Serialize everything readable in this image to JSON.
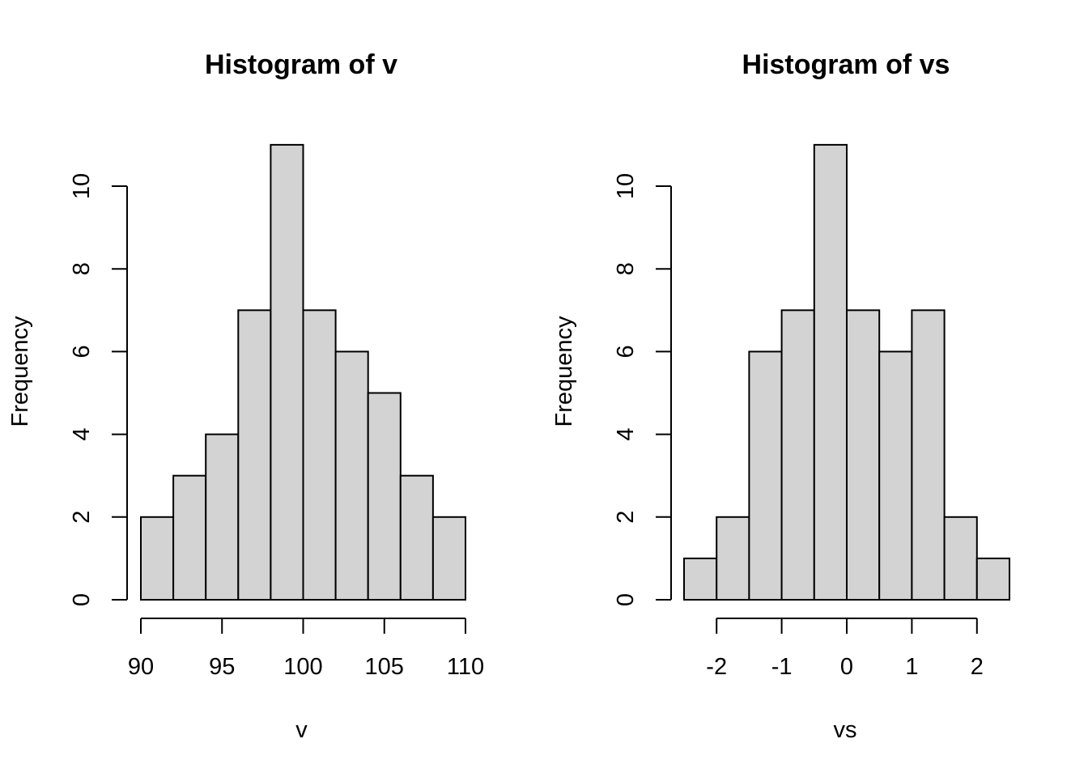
{
  "chart_data": [
    {
      "type": "bar",
      "title": "Histogram of v",
      "xlabel": "v",
      "ylabel": "Frequency",
      "bins": [
        {
          "x0": 90,
          "x1": 92,
          "count": 2
        },
        {
          "x0": 92,
          "x1": 94,
          "count": 3
        },
        {
          "x0": 94,
          "x1": 96,
          "count": 4
        },
        {
          "x0": 96,
          "x1": 98,
          "count": 7
        },
        {
          "x0": 98,
          "x1": 100,
          "count": 11
        },
        {
          "x0": 100,
          "x1": 102,
          "count": 7
        },
        {
          "x0": 102,
          "x1": 104,
          "count": 6
        },
        {
          "x0": 104,
          "x1": 106,
          "count": 5
        },
        {
          "x0": 106,
          "x1": 108,
          "count": 3
        },
        {
          "x0": 108,
          "x1": 110,
          "count": 2
        }
      ],
      "xticks": [
        90,
        95,
        100,
        105,
        110
      ],
      "xtick_labels": [
        "90",
        "95",
        "100",
        "105",
        "110"
      ],
      "yticks": [
        0,
        2,
        4,
        6,
        8,
        10
      ],
      "ytick_labels": [
        "0",
        "2",
        "4",
        "6",
        "8",
        "10"
      ],
      "xlim": [
        90,
        110
      ],
      "ylim": [
        0,
        11
      ],
      "bar_color": "#d3d3d3",
      "edge_color": "#000000",
      "grid": false
    },
    {
      "type": "bar",
      "title": "Histogram of vs",
      "xlabel": "vs",
      "ylabel": "Frequency",
      "bins": [
        {
          "x0": -2.5,
          "x1": -2.0,
          "count": 1
        },
        {
          "x0": -2.0,
          "x1": -1.5,
          "count": 2
        },
        {
          "x0": -1.5,
          "x1": -1.0,
          "count": 6
        },
        {
          "x0": -1.0,
          "x1": -0.5,
          "count": 7
        },
        {
          "x0": -0.5,
          "x1": 0.0,
          "count": 11
        },
        {
          "x0": 0.0,
          "x1": 0.5,
          "count": 7
        },
        {
          "x0": 0.5,
          "x1": 1.0,
          "count": 6
        },
        {
          "x0": 1.0,
          "x1": 1.5,
          "count": 7
        },
        {
          "x0": 1.5,
          "x1": 2.0,
          "count": 2
        },
        {
          "x0": 2.0,
          "x1": 2.5,
          "count": 1
        }
      ],
      "xticks": [
        -2,
        -1,
        0,
        1,
        2
      ],
      "xtick_labels": [
        "-2",
        "-1",
        "0",
        "1",
        "2"
      ],
      "yticks": [
        0,
        2,
        4,
        6,
        8,
        10
      ],
      "ytick_labels": [
        "0",
        "2",
        "4",
        "6",
        "8",
        "10"
      ],
      "xlim": [
        -2.5,
        2.5
      ],
      "ylim": [
        0,
        11
      ],
      "bar_color": "#d3d3d3",
      "edge_color": "#000000",
      "grid": false
    }
  ]
}
